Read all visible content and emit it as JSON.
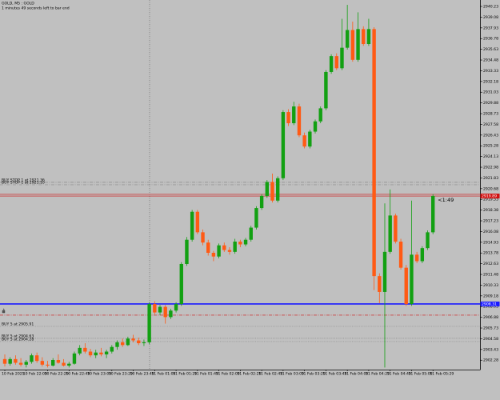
{
  "chart_data": {
    "type": "candlestick",
    "title": "GOLD, M5 : GOLD",
    "subtitle": "1 minutes 49 seconds left to bar end",
    "countdown": "<1:49",
    "up_color": "#12a012",
    "down_color": "#ff5a14",
    "background": "#c0c0c0",
    "categories": [
      "10 Feb 2025",
      null,
      null,
      null,
      "10 Feb 22:09",
      null,
      null,
      null,
      "10 Feb 22:29",
      null,
      null,
      null,
      "10 Feb 22:49",
      null,
      null,
      null,
      "10 Feb 23:09",
      null,
      null,
      null,
      "10 Feb 23:29",
      null,
      null,
      null,
      "10 Feb 23:49",
      null,
      null,
      null,
      "11 Feb 01:09",
      null,
      null,
      null,
      "11 Feb 01:29",
      null,
      null,
      null,
      "11 Feb 01:49",
      null,
      null,
      null,
      "11 Feb 02:09",
      null,
      null,
      null,
      "11 Feb 02:29",
      null,
      null,
      null,
      "11 Feb 02:49",
      null,
      null,
      null,
      "11 Feb 03:09",
      null,
      null,
      null,
      "11 Feb 03:29",
      null,
      null,
      null,
      "11 Feb 03:49",
      null,
      null,
      null,
      "11 Feb 04:09",
      null,
      null,
      null,
      "11 Feb 04:29",
      null,
      null,
      null,
      "11 Feb 04:49",
      null,
      null,
      null,
      "11 Feb 05:09",
      null,
      null,
      null,
      "11 Feb 05:29"
    ],
    "open": [
      2902.4,
      2901.9,
      2902.4,
      2902.0,
      2901.8,
      2902.1,
      2902.8,
      2902.2,
      2901.8,
      2901.7,
      2902.3,
      2902.0,
      2901.7,
      2901.9,
      2903.0,
      2903.6,
      2903.2,
      2902.8,
      2903.1,
      2902.9,
      2903.2,
      2903.7,
      2904.2,
      2903.9,
      2904.6,
      2904.4,
      2904.1,
      2904.2,
      2908.3,
      2907.4,
      2908.0,
      2906.9,
      2907.6,
      2908.3,
      2912.6,
      2915.2,
      2918.2,
      2916.0,
      2914.9,
      2913.8,
      2913.4,
      2914.6,
      2914.1,
      2913.9,
      2915.0,
      2914.7,
      2915.2,
      2916.5,
      2918.6,
      2919.9,
      2921.4,
      2919.4,
      2921.8,
      2928.9,
      2927.7,
      2929.5,
      2926.4,
      2925.2,
      2926.8,
      2927.9,
      2929.3,
      2933.2,
      2934.9,
      2933.6,
      2935.8,
      2937.7,
      2934.5,
      2937.8,
      2936.2,
      2937.8,
      2911.3,
      2909.6,
      2913.9,
      2917.8,
      2915.0,
      2912.2,
      2908.3,
      2913.6,
      2912.9,
      2914.3,
      2916.0
    ],
    "high": [
      2902.9,
      2902.6,
      2902.8,
      2902.5,
      2902.3,
      2903.0,
      2903.1,
      2902.6,
      2902.2,
      2902.5,
      2902.9,
      2902.4,
      2902.1,
      2903.2,
      2903.9,
      2904.1,
      2903.5,
      2903.4,
      2903.6,
      2903.4,
      2903.9,
      2904.4,
      2904.6,
      2904.8,
      2905.0,
      2904.7,
      2904.5,
      2908.5,
      2908.6,
      2908.2,
      2908.2,
      2907.8,
      2908.5,
      2912.8,
      2915.5,
      2918.4,
      2918.4,
      2916.3,
      2915.2,
      2914.0,
      2914.8,
      2914.9,
      2914.4,
      2915.3,
      2915.2,
      2915.4,
      2916.7,
      2918.8,
      2920.1,
      2921.6,
      2922.3,
      2922.0,
      2929.1,
      2929.2,
      2930.0,
      2929.8,
      2926.7,
      2927.0,
      2928.1,
      2929.5,
      2933.4,
      2935.1,
      2935.2,
      2938.9,
      2940.4,
      2938.6,
      2939.6,
      2938.1,
      2938.9,
      2938.0,
      2911.6,
      2919.1,
      2920.6,
      2918.0,
      2915.3,
      2912.5,
      2919.4,
      2913.9,
      2914.5,
      2916.2,
      2920.1
    ],
    "low": [
      2901.6,
      2901.7,
      2901.8,
      2901.6,
      2901.5,
      2901.9,
      2902.0,
      2901.6,
      2901.5,
      2901.6,
      2901.9,
      2901.6,
      2901.5,
      2901.8,
      2902.8,
      2903.0,
      2902.6,
      2902.5,
      2902.7,
      2902.5,
      2903.0,
      2903.4,
      2903.7,
      2903.8,
      2904.2,
      2903.9,
      2903.8,
      2904.0,
      2907.2,
      2907.1,
      2906.2,
      2906.7,
      2907.4,
      2908.1,
      2912.4,
      2915.0,
      2915.8,
      2914.6,
      2913.5,
      2912.9,
      2913.2,
      2913.9,
      2913.6,
      2913.7,
      2914.4,
      2914.5,
      2915.0,
      2916.3,
      2918.4,
      2919.7,
      2919.2,
      2919.2,
      2921.6,
      2927.4,
      2927.5,
      2926.2,
      2925.0,
      2925.0,
      2926.6,
      2927.7,
      2929.1,
      2933.0,
      2933.4,
      2933.4,
      2935.6,
      2934.3,
      2934.3,
      2936.0,
      2936.0,
      2909.8,
      2908.4,
      2901.5,
      2913.7,
      2914.8,
      2912.0,
      2908.1,
      2908.1,
      2912.7,
      2912.7,
      2914.1,
      2915.8
    ],
    "close": [
      2901.9,
      2902.4,
      2902.0,
      2901.8,
      2902.1,
      2902.8,
      2902.2,
      2901.8,
      2901.7,
      2902.3,
      2902.0,
      2901.7,
      2901.9,
      2903.0,
      2903.6,
      2903.2,
      2902.8,
      2903.1,
      2902.9,
      2903.2,
      2903.7,
      2904.2,
      2903.9,
      2904.6,
      2904.4,
      2904.1,
      2904.2,
      2908.3,
      2907.4,
      2908.0,
      2906.9,
      2907.6,
      2908.3,
      2912.6,
      2915.2,
      2918.2,
      2916.0,
      2914.9,
      2913.8,
      2913.4,
      2914.6,
      2914.1,
      2913.9,
      2915.0,
      2914.7,
      2915.2,
      2916.5,
      2918.6,
      2919.9,
      2921.4,
      2919.4,
      2921.8,
      2928.9,
      2927.7,
      2929.5,
      2926.4,
      2925.2,
      2926.8,
      2927.9,
      2929.3,
      2933.2,
      2934.9,
      2933.6,
      2935.8,
      2937.7,
      2934.5,
      2937.8,
      2936.2,
      2937.8,
      2911.3,
      2909.6,
      2913.9,
      2917.8,
      2915.0,
      2912.2,
      2908.3,
      2913.6,
      2912.9,
      2914.3,
      2916.0,
      2919.89
    ],
    "ylim": [
      2901.27,
      2940.92
    ],
    "yticks": [
      2940.23,
      2939.08,
      2937.93,
      2936.78,
      2935.63,
      2934.48,
      2933.33,
      2932.18,
      2931.03,
      2929.88,
      2928.73,
      2927.58,
      2926.43,
      2925.28,
      2924.13,
      2922.98,
      2921.83,
      2920.68,
      2919.53,
      2918.38,
      2917.23,
      2916.08,
      2914.93,
      2913.78,
      2912.63,
      2911.48,
      2910.33,
      2909.18,
      2908.03,
      2906.88,
      2905.73,
      2904.58,
      2903.43,
      2902.28
    ],
    "bid": 2919.89,
    "bid_color": "#d01010",
    "levels": [
      {
        "label": "BUY STOP 1 at 2921.36",
        "value": 2921.36,
        "color": "#8a8a8a",
        "style": "dashdot"
      },
      {
        "label": "BUY STOP 1 at 2921.10",
        "value": 2921.1,
        "color": "#8a8a8a",
        "style": "dashdot"
      },
      {
        "value": 2920.07,
        "color": "#d01010",
        "style": "solid"
      },
      {
        "value": 2908.31,
        "color": "#1a1aff",
        "style": "thick",
        "box": true
      },
      {
        "value": 2907.11,
        "color": "#d01010",
        "style": "dashdot"
      },
      {
        "label": "BUY 5 at 2905.91",
        "value": 2905.91,
        "color": "#8a8a8a",
        "style": "dotted"
      },
      {
        "label": "BUY 5 at 2904.63",
        "value": 2904.63,
        "color": "#8a8a8a",
        "style": "dotted"
      },
      {
        "label": "BUY 5 at 2904.28",
        "value": 2904.28,
        "color": "#8a8a8a",
        "style": "dotted"
      }
    ]
  }
}
